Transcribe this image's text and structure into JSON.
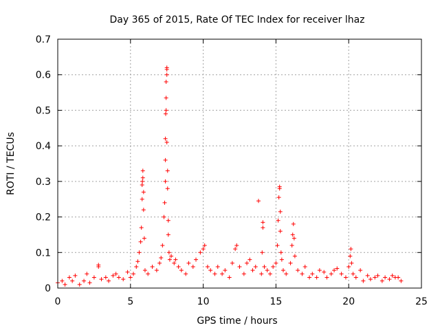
{
  "chart_data": {
    "type": "scatter",
    "title": "Day 365 of 2015, Rate Of TEC Index for receiver lhaz",
    "xlabel": "GPS time / hours",
    "ylabel": "ROTI / TECUs",
    "xlim": [
      0,
      25
    ],
    "ylim": [
      0,
      0.7
    ],
    "xticks": [
      0,
      5,
      10,
      15,
      20,
      25
    ],
    "xtick_labels": [
      "0",
      "5",
      "10",
      "15",
      "20",
      "25"
    ],
    "yticks": [
      0,
      0.1,
      0.2,
      0.3,
      0.4,
      0.5,
      0.6,
      0.7
    ],
    "ytick_labels": [
      "0",
      "0.1",
      "0.2",
      "0.3",
      "0.4",
      "0.5",
      "0.6",
      "0.7"
    ],
    "grid": true,
    "marker": "+",
    "color": "#ff0000",
    "series": [
      {
        "x": [
          0.0,
          0.3,
          0.5,
          0.8,
          1.0,
          1.2,
          1.5,
          1.8,
          2.0,
          2.2,
          2.5,
          2.8,
          2.8,
          3.0,
          3.3,
          3.5,
          3.8,
          4.0,
          4.2,
          4.5,
          4.8,
          5.0,
          5.2,
          5.4,
          5.5,
          5.6,
          5.7,
          5.75,
          5.8,
          5.8,
          5.82,
          5.85,
          5.85,
          5.9,
          5.9,
          5.95,
          6.0,
          6.2,
          6.5,
          6.8,
          7.0,
          7.1,
          7.2,
          7.3,
          7.35,
          7.4,
          7.4,
          7.4,
          7.42,
          7.45,
          7.45,
          7.45,
          7.5,
          7.5,
          7.5,
          7.5,
          7.55,
          7.55,
          7.6,
          7.6,
          7.65,
          7.7,
          7.8,
          8.0,
          8.1,
          8.3,
          8.5,
          8.8,
          9.0,
          9.3,
          9.5,
          9.8,
          10.0,
          10.1,
          10.3,
          10.5,
          10.8,
          11.0,
          11.3,
          11.5,
          11.8,
          12.0,
          12.2,
          12.3,
          12.5,
          12.8,
          13.0,
          13.2,
          13.4,
          13.6,
          13.8,
          14.0,
          14.05,
          14.1,
          14.1,
          14.2,
          14.4,
          14.6,
          14.8,
          15.0,
          15.1,
          15.15,
          15.2,
          15.25,
          15.25,
          15.3,
          15.3,
          15.35,
          15.4,
          15.5,
          15.7,
          16.0,
          16.1,
          16.15,
          16.2,
          16.25,
          16.3,
          16.5,
          16.8,
          17.0,
          17.3,
          17.5,
          17.8,
          18.0,
          18.3,
          18.5,
          18.8,
          19.0,
          19.2,
          19.5,
          19.8,
          20.0,
          20.1,
          20.15,
          20.2,
          20.3,
          20.5,
          20.8,
          21.0,
          21.3,
          21.5,
          21.8,
          22.0,
          22.3,
          22.5,
          22.8,
          23.0,
          23.2,
          23.4,
          23.6
        ],
        "y": [
          0.015,
          0.02,
          0.01,
          0.03,
          0.02,
          0.035,
          0.01,
          0.02,
          0.04,
          0.015,
          0.03,
          0.065,
          0.06,
          0.025,
          0.03,
          0.02,
          0.035,
          0.04,
          0.03,
          0.025,
          0.045,
          0.03,
          0.04,
          0.06,
          0.075,
          0.1,
          0.13,
          0.17,
          0.25,
          0.29,
          0.3,
          0.31,
          0.33,
          0.27,
          0.22,
          0.14,
          0.05,
          0.04,
          0.06,
          0.05,
          0.07,
          0.085,
          0.12,
          0.2,
          0.24,
          0.3,
          0.36,
          0.42,
          0.49,
          0.5,
          0.535,
          0.58,
          0.6,
          0.615,
          0.62,
          0.41,
          0.33,
          0.28,
          0.19,
          0.15,
          0.1,
          0.08,
          0.09,
          0.07,
          0.08,
          0.06,
          0.05,
          0.04,
          0.07,
          0.06,
          0.08,
          0.1,
          0.11,
          0.12,
          0.06,
          0.05,
          0.04,
          0.06,
          0.04,
          0.05,
          0.03,
          0.07,
          0.11,
          0.12,
          0.06,
          0.04,
          0.07,
          0.08,
          0.05,
          0.06,
          0.245,
          0.04,
          0.1,
          0.17,
          0.185,
          0.06,
          0.05,
          0.04,
          0.06,
          0.07,
          0.12,
          0.19,
          0.255,
          0.28,
          0.285,
          0.215,
          0.16,
          0.1,
          0.08,
          0.05,
          0.04,
          0.07,
          0.12,
          0.15,
          0.18,
          0.14,
          0.09,
          0.05,
          0.04,
          0.06,
          0.03,
          0.04,
          0.03,
          0.05,
          0.045,
          0.03,
          0.04,
          0.05,
          0.055,
          0.04,
          0.03,
          0.06,
          0.09,
          0.11,
          0.07,
          0.04,
          0.03,
          0.05,
          0.02,
          0.035,
          0.025,
          0.03,
          0.035,
          0.02,
          0.03,
          0.025,
          0.035,
          0.03,
          0.03,
          0.02
        ]
      }
    ]
  }
}
